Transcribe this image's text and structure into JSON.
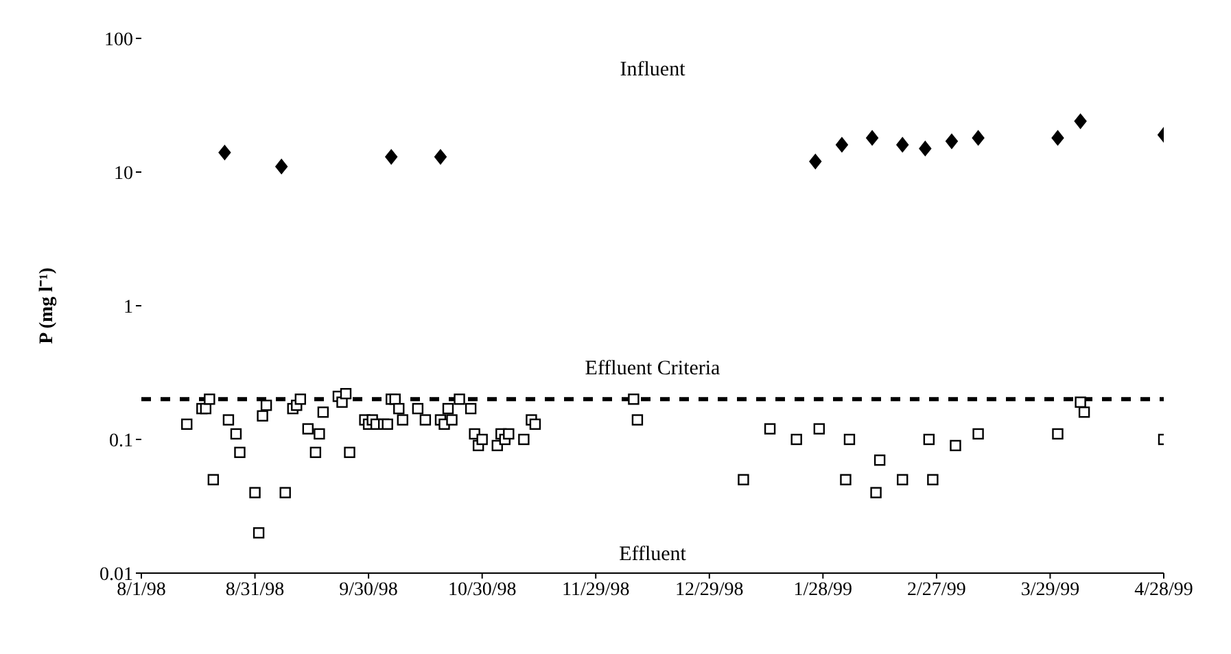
{
  "chart_data": {
    "type": "scatter",
    "ylabel": "P (mg l⁻¹)",
    "log": "y",
    "grid": false,
    "legend": false,
    "xlim": [
      "1998-08-01",
      "1999-04-28"
    ],
    "xticks": [
      {
        "value": "1998-08-01",
        "label": "8/1/98"
      },
      {
        "value": "1998-08-31",
        "label": "8/31/98"
      },
      {
        "value": "1998-09-30",
        "label": "9/30/98"
      },
      {
        "value": "1998-10-30",
        "label": "10/30/98"
      },
      {
        "value": "1998-11-29",
        "label": "11/29/98"
      },
      {
        "value": "1998-12-29",
        "label": "12/29/98"
      },
      {
        "value": "1999-01-28",
        "label": "1/28/99"
      },
      {
        "value": "1999-02-27",
        "label": "2/27/99"
      },
      {
        "value": "1999-03-29",
        "label": "3/29/99"
      },
      {
        "value": "1999-04-28",
        "label": "4/28/99"
      }
    ],
    "ylim": [
      0.01,
      100
    ],
    "yticks": [
      0.01,
      0.1,
      1,
      10,
      100
    ],
    "annotations": [
      "Influent",
      "Effluent"
    ],
    "ref_lines": [
      {
        "axis": "y",
        "value": 0.2,
        "label": "Effluent Criteria",
        "color": "#000000",
        "line_style": "dashed"
      }
    ],
    "series": [
      {
        "color": "#000000",
        "marker": "diamond",
        "x": [
          "1998-08-23",
          "1998-09-07",
          "1998-10-06",
          "1998-10-19",
          "1999-01-26",
          "1999-02-02",
          "1999-02-10",
          "1999-02-18",
          "1999-02-24",
          "1999-03-03",
          "1999-03-10",
          "1999-03-31",
          "1999-04-06",
          "1999-04-28"
        ],
        "values": [
          14,
          11,
          13,
          13,
          12,
          16,
          18,
          16,
          15,
          17,
          18,
          18,
          24,
          19
        ]
      },
      {
        "color": "#000000",
        "marker": "square",
        "x": [
          "1998-08-13",
          "1998-08-17",
          "1998-08-18",
          "1998-08-19",
          "1998-08-20",
          "1998-08-24",
          "1998-08-26",
          "1998-08-27",
          "1998-08-31",
          "1998-09-01",
          "1998-09-02",
          "1998-09-03",
          "1998-09-08",
          "1998-09-10",
          "1998-09-11",
          "1998-09-12",
          "1998-09-14",
          "1998-09-16",
          "1998-09-17",
          "1998-09-18",
          "1998-09-22",
          "1998-09-23",
          "1998-09-24",
          "1998-09-25",
          "1998-09-29",
          "1998-09-30",
          "1998-10-01",
          "1998-10-02",
          "1998-10-04",
          "1998-10-05",
          "1998-10-06",
          "1998-10-07",
          "1998-10-08",
          "1998-10-09",
          "1998-10-13",
          "1998-10-15",
          "1998-10-19",
          "1998-10-20",
          "1998-10-21",
          "1998-10-22",
          "1998-10-24",
          "1998-10-27",
          "1998-10-28",
          "1998-10-29",
          "1998-10-30",
          "1998-11-03",
          "1998-11-04",
          "1998-11-05",
          "1998-11-06",
          "1998-11-10",
          "1998-11-12",
          "1998-11-13",
          "1998-12-09",
          "1998-12-10",
          "1999-01-07",
          "1999-01-14",
          "1999-01-21",
          "1999-01-27",
          "1999-02-03",
          "1999-02-04",
          "1999-02-11",
          "1999-02-12",
          "1999-02-18",
          "1999-02-25",
          "1999-02-26",
          "1999-03-04",
          "1999-03-10",
          "1999-03-31",
          "1999-04-06",
          "1999-04-07",
          "1999-04-28"
        ],
        "values": [
          0.13,
          0.17,
          0.17,
          0.2,
          0.05,
          0.14,
          0.11,
          0.08,
          0.04,
          0.02,
          0.15,
          0.18,
          0.04,
          0.17,
          0.18,
          0.2,
          0.12,
          0.08,
          0.11,
          0.16,
          0.21,
          0.19,
          0.22,
          0.08,
          0.14,
          0.13,
          0.14,
          0.13,
          0.13,
          0.13,
          0.2,
          0.2,
          0.17,
          0.14,
          0.17,
          0.14,
          0.14,
          0.13,
          0.17,
          0.14,
          0.2,
          0.17,
          0.11,
          0.09,
          0.1,
          0.09,
          0.11,
          0.1,
          0.11,
          0.1,
          0.14,
          0.13,
          0.2,
          0.14,
          0.05,
          0.12,
          0.1,
          0.12,
          0.05,
          0.1,
          0.04,
          0.07,
          0.05,
          0.1,
          0.05,
          0.09,
          0.11,
          0.11,
          0.19,
          0.16,
          0.1
        ]
      }
    ]
  }
}
